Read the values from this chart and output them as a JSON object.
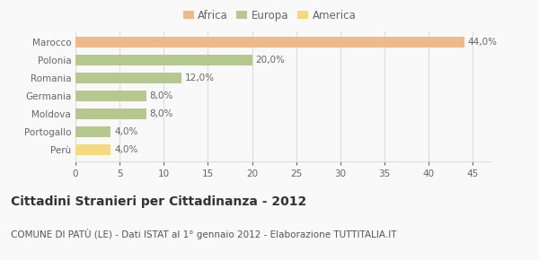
{
  "categories": [
    "Marocco",
    "Polonia",
    "Romania",
    "Germania",
    "Moldova",
    "Portogallo",
    "Perù"
  ],
  "values": [
    44.0,
    20.0,
    12.0,
    8.0,
    8.0,
    4.0,
    4.0
  ],
  "colors": [
    "#F0B98A",
    "#B5C98E",
    "#B5C98E",
    "#B5C98E",
    "#B5C98E",
    "#B5C98E",
    "#F5D97A"
  ],
  "labels": [
    "44,0%",
    "20,0%",
    "12,0%",
    "8,0%",
    "8,0%",
    "4,0%",
    "4,0%"
  ],
  "legend": [
    {
      "label": "Africa",
      "color": "#F0B98A"
    },
    {
      "label": "Europa",
      "color": "#B5C98E"
    },
    {
      "label": "America",
      "color": "#F5D97A"
    }
  ],
  "xlim": [
    0,
    47
  ],
  "xticks": [
    0,
    5,
    10,
    15,
    20,
    25,
    30,
    35,
    40,
    45
  ],
  "title": "Cittadini Stranieri per Cittadinanza - 2012",
  "subtitle": "COMUNE DI PATÙ (LE) - Dati ISTAT al 1° gennaio 2012 - Elaborazione TUTTITALIA.IT",
  "bg_color": "#f9f9f9",
  "grid_color": "#dddddd",
  "bar_height": 0.6,
  "title_fontsize": 10,
  "subtitle_fontsize": 7.5,
  "label_fontsize": 7.5,
  "tick_fontsize": 7.5,
  "legend_fontsize": 8.5
}
